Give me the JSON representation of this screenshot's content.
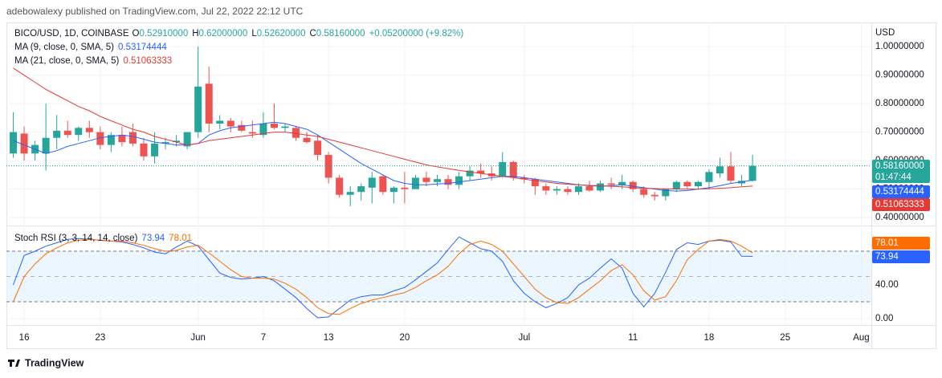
{
  "header": "adebowalexy published on TradingView.com, Jul 22, 2022 22:12 UTC",
  "footer": "TradingView",
  "chart_data": {
    "type": "candlestick",
    "legend": {
      "symbol": "BICO/USD, 1D, COINBASE",
      "fields": [
        {
          "key": "O",
          "text": "0.52910000"
        },
        {
          "key": "H",
          "text": "0.62000000"
        },
        {
          "key": "L",
          "text": "0.52620000"
        },
        {
          "key": "C",
          "text": "0.58160000"
        }
      ],
      "change": "+0.05200000 (+9.82%)",
      "countdown": "01:47:44"
    },
    "y_axis_label": "USD",
    "x": [
      "2022-05-15",
      "2022-05-16",
      "2022-05-17",
      "2022-05-18",
      "2022-05-19",
      "2022-05-20",
      "2022-05-21",
      "2022-05-22",
      "2022-05-23",
      "2022-05-24",
      "2022-05-25",
      "2022-05-26",
      "2022-05-27",
      "2022-05-28",
      "2022-05-29",
      "2022-05-30",
      "2022-05-31",
      "2022-06-01",
      "2022-06-02",
      "2022-06-03",
      "2022-06-04",
      "2022-06-05",
      "2022-06-06",
      "2022-06-07",
      "2022-06-08",
      "2022-06-09",
      "2022-06-10",
      "2022-06-11",
      "2022-06-12",
      "2022-06-13",
      "2022-06-14",
      "2022-06-15",
      "2022-06-16",
      "2022-06-17",
      "2022-06-18",
      "2022-06-19",
      "2022-06-20",
      "2022-06-21",
      "2022-06-22",
      "2022-06-23",
      "2022-06-24",
      "2022-06-25",
      "2022-06-26",
      "2022-06-27",
      "2022-06-28",
      "2022-06-29",
      "2022-06-30",
      "2022-07-01",
      "2022-07-02",
      "2022-07-03",
      "2022-07-04",
      "2022-07-05",
      "2022-07-06",
      "2022-07-07",
      "2022-07-08",
      "2022-07-09",
      "2022-07-10",
      "2022-07-11",
      "2022-07-12",
      "2022-07-13",
      "2022-07-14",
      "2022-07-15",
      "2022-07-16",
      "2022-07-17",
      "2022-07-18",
      "2022-07-19",
      "2022-07-20",
      "2022-07-21",
      "2022-07-22"
    ],
    "xlim": [
      "2022-05-14",
      "2022-08-02"
    ],
    "xticks": [
      {
        "value": "2022-05-16",
        "label": "16"
      },
      {
        "value": "2022-05-23",
        "label": "23"
      },
      {
        "value": "2022-06-01",
        "label": "Jun"
      },
      {
        "value": "2022-06-07",
        "label": "7"
      },
      {
        "value": "2022-06-13",
        "label": "13"
      },
      {
        "value": "2022-06-20",
        "label": "20"
      },
      {
        "value": "2022-07-01",
        "label": "Jul"
      },
      {
        "value": "2022-07-11",
        "label": "11"
      },
      {
        "value": "2022-07-18",
        "label": "18"
      },
      {
        "value": "2022-07-25",
        "label": "25"
      },
      {
        "value": "2022-08-01",
        "label": "Aug"
      }
    ],
    "open": [
      0.625,
      0.695,
      0.625,
      0.625,
      0.68,
      0.705,
      0.69,
      0.715,
      0.7,
      0.655,
      0.69,
      0.7,
      0.66,
      0.615,
      0.66,
      0.665,
      0.65,
      0.7,
      0.87,
      0.73,
      0.74,
      0.725,
      0.7,
      0.69,
      0.73,
      0.715,
      0.715,
      0.68,
      0.67,
      0.62,
      0.54,
      0.48,
      0.49,
      0.505,
      0.545,
      0.49,
      0.505,
      0.5,
      0.54,
      0.525,
      0.535,
      0.515,
      0.545,
      0.565,
      0.555,
      0.545,
      0.595,
      0.54,
      0.535,
      0.51,
      0.495,
      0.5,
      0.49,
      0.51,
      0.495,
      0.52,
      0.515,
      0.525,
      0.5,
      0.48,
      0.475,
      0.5,
      0.525,
      0.51,
      0.525,
      0.555,
      0.58,
      0.52,
      0.5291
    ],
    "high": [
      0.77,
      0.72,
      0.67,
      0.8,
      0.76,
      0.74,
      0.72,
      0.74,
      0.72,
      0.7,
      0.72,
      0.73,
      0.68,
      0.7,
      0.68,
      0.69,
      0.7,
      1.0,
      0.93,
      0.76,
      0.75,
      0.74,
      0.74,
      0.77,
      0.8,
      0.73,
      0.72,
      0.7,
      0.69,
      0.63,
      0.55,
      0.51,
      0.52,
      0.56,
      0.55,
      0.51,
      0.56,
      0.55,
      0.56,
      0.55,
      0.55,
      0.56,
      0.58,
      0.59,
      0.58,
      0.63,
      0.6,
      0.55,
      0.54,
      0.52,
      0.51,
      0.51,
      0.52,
      0.53,
      0.53,
      0.54,
      0.55,
      0.53,
      0.51,
      0.49,
      0.5,
      0.53,
      0.53,
      0.53,
      0.57,
      0.61,
      0.63,
      0.55,
      0.62
    ],
    "low": [
      0.61,
      0.6,
      0.6,
      0.565,
      0.64,
      0.68,
      0.67,
      0.68,
      0.64,
      0.63,
      0.65,
      0.65,
      0.6,
      0.59,
      0.64,
      0.65,
      0.64,
      0.68,
      0.7,
      0.71,
      0.7,
      0.7,
      0.68,
      0.68,
      0.71,
      0.7,
      0.67,
      0.66,
      0.6,
      0.52,
      0.47,
      0.44,
      0.46,
      0.45,
      0.48,
      0.45,
      0.45,
      0.5,
      0.51,
      0.51,
      0.5,
      0.5,
      0.53,
      0.54,
      0.53,
      0.54,
      0.53,
      0.52,
      0.48,
      0.48,
      0.48,
      0.48,
      0.48,
      0.49,
      0.49,
      0.5,
      0.5,
      0.49,
      0.47,
      0.46,
      0.46,
      0.49,
      0.5,
      0.5,
      0.5,
      0.54,
      0.52,
      0.51,
      0.5262
    ],
    "close": [
      0.7,
      0.625,
      0.655,
      0.68,
      0.705,
      0.69,
      0.715,
      0.7,
      0.655,
      0.69,
      0.665,
      0.66,
      0.615,
      0.66,
      0.665,
      0.67,
      0.7,
      0.86,
      0.73,
      0.74,
      0.72,
      0.705,
      0.695,
      0.73,
      0.715,
      0.72,
      0.68,
      0.665,
      0.62,
      0.54,
      0.48,
      0.49,
      0.51,
      0.54,
      0.49,
      0.505,
      0.5,
      0.54,
      0.525,
      0.535,
      0.515,
      0.545,
      0.565,
      0.555,
      0.545,
      0.595,
      0.54,
      0.535,
      0.51,
      0.495,
      0.5,
      0.49,
      0.51,
      0.495,
      0.52,
      0.515,
      0.525,
      0.5,
      0.48,
      0.475,
      0.5,
      0.525,
      0.51,
      0.525,
      0.56,
      0.58,
      0.53,
      0.5291,
      0.5816
    ],
    "up_color": "#26a69a",
    "down_color": "#ef5350",
    "series": [
      {
        "name": "MA (9, close, 0, SMA, 5)",
        "color": "#2962ff",
        "values": [
          0.67,
          0.655,
          0.64,
          0.625,
          0.635,
          0.65,
          0.66,
          0.67,
          0.68,
          0.685,
          0.69,
          0.685,
          0.675,
          0.665,
          0.66,
          0.655,
          0.655,
          0.66,
          0.69,
          0.705,
          0.715,
          0.72,
          0.725,
          0.73,
          0.735,
          0.73,
          0.72,
          0.71,
          0.69,
          0.665,
          0.64,
          0.615,
          0.59,
          0.57,
          0.55,
          0.53,
          0.52,
          0.515,
          0.515,
          0.518,
          0.52,
          0.525,
          0.53,
          0.535,
          0.54,
          0.545,
          0.545,
          0.54,
          0.535,
          0.53,
          0.525,
          0.52,
          0.515,
          0.512,
          0.51,
          0.512,
          0.515,
          0.51,
          0.505,
          0.5,
          0.495,
          0.493,
          0.495,
          0.5,
          0.505,
          0.512,
          0.52,
          0.525,
          0.53174444
        ]
      },
      {
        "name": "MA (21, close, 0, SMA, 5)",
        "color": "#e53935",
        "values": [
          0.925,
          0.9,
          0.875,
          0.85,
          0.83,
          0.81,
          0.79,
          0.775,
          0.755,
          0.74,
          0.725,
          0.71,
          0.7,
          0.685,
          0.675,
          0.665,
          0.655,
          0.66,
          0.67,
          0.675,
          0.68,
          0.685,
          0.69,
          0.695,
          0.7,
          0.7,
          0.695,
          0.69,
          0.685,
          0.675,
          0.665,
          0.655,
          0.645,
          0.635,
          0.625,
          0.615,
          0.605,
          0.595,
          0.585,
          0.578,
          0.572,
          0.566,
          0.56,
          0.555,
          0.55,
          0.545,
          0.54,
          0.535,
          0.53,
          0.525,
          0.52,
          0.517,
          0.515,
          0.513,
          0.512,
          0.51,
          0.508,
          0.505,
          0.503,
          0.502,
          0.501,
          0.5,
          0.5,
          0.5,
          0.501,
          0.503,
          0.505,
          0.508,
          0.51063333
        ]
      }
    ],
    "ylim": [
      0.375,
      1.085
    ],
    "yticks": [
      {
        "value": 0.4,
        "label": "0.40000000"
      },
      {
        "value": 0.5,
        "label": "0.50000000"
      },
      {
        "value": 0.6,
        "label": "0.60000000"
      },
      {
        "value": 0.7,
        "label": "0.70000000"
      },
      {
        "value": 0.8,
        "label": "0.80000000"
      },
      {
        "value": 0.9,
        "label": "0.90000000"
      },
      {
        "value": 1.0,
        "label": "1.00000000"
      }
    ],
    "grid": true,
    "indicator": {
      "type": "line",
      "name": "Stoch RSI (3, 3, 14, 14, close)",
      "series": [
        {
          "name": "K",
          "color": "#2962ff",
          "values": [
            40,
            75,
            80,
            86,
            90,
            94,
            95,
            94,
            93,
            92,
            91,
            88,
            84,
            79,
            77,
            85,
            92,
            86,
            70,
            54,
            49,
            47,
            48,
            50,
            45,
            35,
            25,
            12,
            1,
            2,
            12,
            22,
            26,
            28,
            28,
            33,
            37,
            46,
            56,
            66,
            82,
            97,
            90,
            83,
            80,
            68,
            45,
            30,
            20,
            13,
            18,
            25,
            40,
            48,
            60,
            71,
            60,
            30,
            14,
            30,
            55,
            82,
            90,
            88,
            92,
            93,
            91,
            74,
            73.94
          ]
        },
        {
          "name": "D",
          "color": "#ff6d00",
          "values": [
            20,
            50,
            65,
            77,
            84,
            90,
            93,
            94,
            93,
            92,
            92,
            90,
            87,
            83,
            80,
            81,
            85,
            87,
            78,
            68,
            58,
            50,
            48,
            48,
            47,
            42,
            35,
            25,
            13,
            6,
            5,
            12,
            18,
            22,
            25,
            28,
            31,
            37,
            45,
            52,
            62,
            77,
            88,
            92,
            88,
            80,
            65,
            50,
            35,
            25,
            19,
            18,
            25,
            35,
            45,
            57,
            64,
            52,
            33,
            22,
            26,
            45,
            70,
            82,
            92,
            94,
            92,
            86,
            78.01
          ]
        }
      ],
      "levels": [
        20,
        50,
        80
      ],
      "band_color": "#e3f2fd",
      "ylim": [
        -7.6,
        108.6
      ],
      "yticks": [
        {
          "value": 0,
          "label": "0.00"
        },
        {
          "value": 40,
          "label": "40.00"
        }
      ]
    }
  }
}
